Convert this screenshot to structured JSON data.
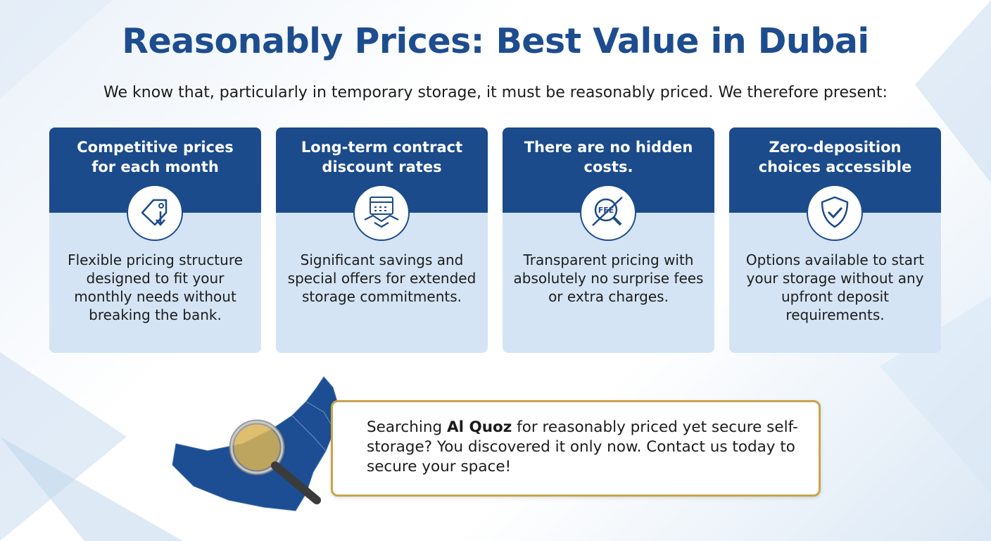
{
  "header": {
    "title": "Reasonably Prices: Best Value in Dubai",
    "subtitle": "We know that, particularly in temporary storage, it must be reasonably priced. We therefore present:"
  },
  "cards": [
    {
      "title": "Competitive prices for each month",
      "body": "Flexible pricing structure designed to fit your monthly needs without breaking the bank."
    },
    {
      "title": "Long-term contract discount rates",
      "body": "Significant savings and special offers for extended storage commitments."
    },
    {
      "title": "There are no hidden costs.",
      "icon_text": "FEE",
      "body": "Transparent pricing with absolutely no surprise fees or extra charges."
    },
    {
      "title": "Zero-deposition choices accessible",
      "body": "Options available to start your storage without any upfront deposit requirements."
    }
  ],
  "callout": {
    "before": "Searching ",
    "bold": "Al Quoz",
    "after": " for reasonably priced yet secure self-storage? You discovered it only now. Contact us today to secure your space!"
  }
}
